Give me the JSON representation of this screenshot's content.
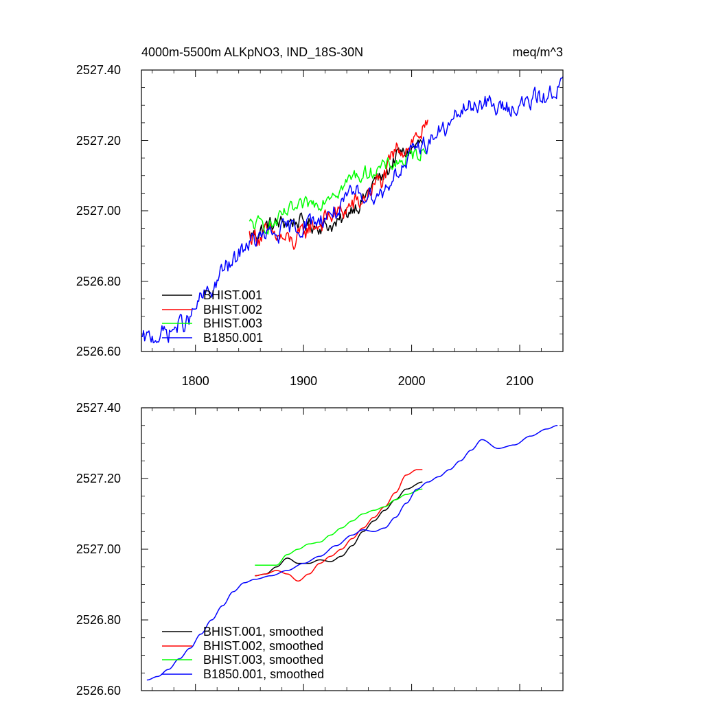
{
  "chart_data": [
    {
      "type": "line",
      "panel": "top",
      "title_left": "4000m-5500m ALKpNO3, IND_18S-30N",
      "title_right": "meq/m^3",
      "xlabel": "",
      "ylabel": "",
      "xlim": [
        1750,
        2140
      ],
      "ylim": [
        2526.6,
        2527.4
      ],
      "xticks": [
        1800,
        1900,
        2000,
        2100
      ],
      "xtick_labels": [
        "1800",
        "1900",
        "2000",
        "2100"
      ],
      "yticks": [
        2526.6,
        2526.8,
        2527.0,
        2527.2,
        2527.4
      ],
      "ytick_labels": [
        "2526.60",
        "2526.80",
        "2527.00",
        "2527.20",
        "2527.40"
      ],
      "legend_position": "bottom-left",
      "series": [
        {
          "name": "BHIST.001",
          "color": "#000000",
          "noise": 0.018,
          "x": [
            1850,
            1870,
            1890,
            1910,
            1930,
            1950,
            1970,
            1990,
            2010
          ],
          "y": [
            2526.93,
            2526.96,
            2526.97,
            2526.96,
            2526.96,
            2527.02,
            2527.09,
            2527.16,
            2527.19
          ]
        },
        {
          "name": "BHIST.002",
          "color": "#ff0000",
          "noise": 0.022,
          "x": [
            1850,
            1870,
            1890,
            1910,
            1930,
            1950,
            1970,
            1990,
            2015
          ],
          "y": [
            2526.93,
            2526.93,
            2526.91,
            2526.96,
            2526.99,
            2527.02,
            2527.08,
            2527.18,
            2527.23
          ]
        },
        {
          "name": "BHIST.003",
          "color": "#00ff00",
          "noise": 0.016,
          "x": [
            1850,
            1870,
            1890,
            1910,
            1930,
            1950,
            1970,
            1990,
            2013
          ],
          "y": [
            2526.96,
            2526.96,
            2527.0,
            2527.02,
            2527.06,
            2527.1,
            2527.12,
            2527.14,
            2527.17
          ]
        },
        {
          "name": "B1850.001",
          "color": "#0000ff",
          "noise": 0.02,
          "x": [
            1750,
            1770,
            1790,
            1810,
            1830,
            1850,
            1870,
            1890,
            1910,
            1930,
            1950,
            1970,
            1990,
            2010,
            2030,
            2050,
            2065,
            2080,
            2100,
            2120,
            2140
          ],
          "y": [
            2526.63,
            2526.65,
            2526.68,
            2526.76,
            2526.84,
            2526.91,
            2526.93,
            2526.95,
            2526.97,
            2527.0,
            2527.05,
            2527.05,
            2527.12,
            2527.19,
            2527.23,
            2527.29,
            2527.31,
            2527.29,
            2527.3,
            2527.32,
            2527.36
          ]
        }
      ]
    },
    {
      "type": "line",
      "panel": "bottom",
      "xlabel": "",
      "ylabel": "",
      "xlim": [
        1750,
        2140
      ],
      "ylim": [
        2526.6,
        2527.4
      ],
      "xticks": [
        1800,
        1900,
        2000,
        2100
      ],
      "yticks": [
        2526.6,
        2526.8,
        2527.0,
        2527.2,
        2527.4
      ],
      "ytick_labels": [
        "2526.60",
        "2526.80",
        "2527.00",
        "2527.20",
        "2527.40"
      ],
      "legend_position": "bottom-left",
      "series": [
        {
          "name": "BHIST.001, smoothed",
          "color": "#000000",
          "x": [
            1855,
            1865,
            1875,
            1885,
            1895,
            1905,
            1915,
            1925,
            1935,
            1945,
            1955,
            1965,
            1975,
            1985,
            1995,
            2010
          ],
          "y": [
            2526.925,
            2526.93,
            2526.95,
            2526.975,
            2526.96,
            2526.96,
            2526.97,
            2526.965,
            2526.98,
            2527.01,
            2527.05,
            2527.08,
            2527.11,
            2527.14,
            2527.17,
            2527.19
          ]
        },
        {
          "name": "BHIST.002, smoothed",
          "color": "#ff0000",
          "x": [
            1855,
            1865,
            1875,
            1885,
            1895,
            1905,
            1915,
            1925,
            1935,
            1945,
            1955,
            1965,
            1975,
            1985,
            1995,
            2005,
            2010
          ],
          "y": [
            2526.925,
            2526.93,
            2526.94,
            2526.93,
            2526.91,
            2526.93,
            2526.96,
            2526.98,
            2527.0,
            2527.03,
            2527.06,
            2527.09,
            2527.12,
            2527.16,
            2527.21,
            2527.225,
            2527.225
          ]
        },
        {
          "name": "BHIST.003, smoothed",
          "color": "#00ff00",
          "x": [
            1855,
            1865,
            1875,
            1885,
            1895,
            1905,
            1915,
            1925,
            1935,
            1945,
            1955,
            1965,
            1975,
            1985,
            1995,
            2010
          ],
          "y": [
            2526.955,
            2526.955,
            2526.955,
            2526.985,
            2527.0,
            2527.015,
            2527.02,
            2527.04,
            2527.06,
            2527.08,
            2527.1,
            2527.11,
            2527.12,
            2527.14,
            2527.155,
            2527.17
          ]
        },
        {
          "name": "B1850.001, smoothed",
          "color": "#0000ff",
          "x": [
            1755,
            1765,
            1775,
            1785,
            1795,
            1805,
            1815,
            1825,
            1835,
            1845,
            1855,
            1870,
            1885,
            1900,
            1915,
            1930,
            1945,
            1955,
            1965,
            1975,
            1985,
            1995,
            2005,
            2015,
            2025,
            2035,
            2045,
            2055,
            2065,
            2080,
            2095,
            2110,
            2125,
            2135
          ],
          "y": [
            2526.63,
            2526.64,
            2526.66,
            2526.69,
            2526.72,
            2526.76,
            2526.8,
            2526.84,
            2526.88,
            2526.905,
            2526.915,
            2526.925,
            2526.94,
            2526.96,
            2526.98,
            2527.01,
            2527.04,
            2527.055,
            2527.05,
            2527.06,
            2527.09,
            2527.13,
            2527.17,
            2527.19,
            2527.205,
            2527.225,
            2527.25,
            2527.28,
            2527.31,
            2527.285,
            2527.295,
            2527.32,
            2527.34,
            2527.35
          ]
        }
      ]
    }
  ]
}
